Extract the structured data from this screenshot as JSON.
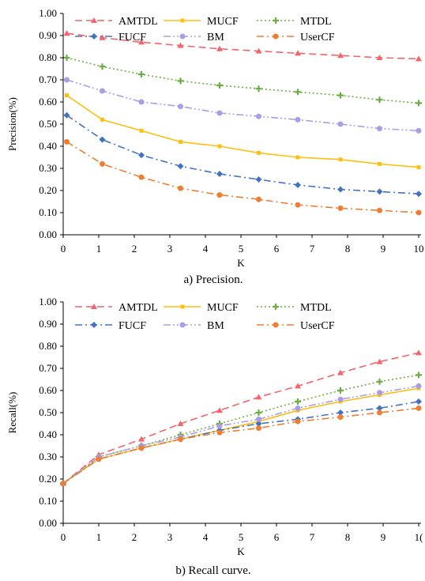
{
  "colors": {
    "AMTDL": "#f4646c",
    "MUCF": "#fdbf14",
    "MTDL": "#6cad45",
    "FUCF": "#4273c0",
    "BM": "#a99ee6",
    "UserCF": "#ee7e33"
  },
  "chart_data": [
    {
      "type": "line",
      "caption": "a) Precision.",
      "xlabel": "K",
      "ylabel": "Precision(%)",
      "xlim": [
        0,
        10
      ],
      "ylim": [
        0,
        1
      ],
      "x_ticks": [
        "0",
        "1",
        "2",
        "3",
        "4",
        "5",
        "6",
        "7",
        "8",
        "9",
        "10"
      ],
      "y_ticks": [
        "0.00",
        "0.10",
        "0.20",
        "0.30",
        "0.40",
        "0.50",
        "0.60",
        "0.70",
        "0.80",
        "0.90",
        "1.00"
      ],
      "grid": false,
      "legend_position": "top",
      "x": [
        0.1,
        1.1,
        2.2,
        3.3,
        4.4,
        5.5,
        6.6,
        7.8,
        8.9,
        10
      ],
      "series": [
        {
          "name": "AMTDL",
          "marker": "triangle",
          "dash": "dash",
          "values": [
            0.91,
            0.89,
            0.87,
            0.855,
            0.84,
            0.83,
            0.82,
            0.81,
            0.8,
            0.795
          ]
        },
        {
          "name": "MUCF",
          "marker": "square",
          "dash": "solid",
          "values": [
            0.63,
            0.52,
            0.47,
            0.42,
            0.4,
            0.37,
            0.35,
            0.34,
            0.32,
            0.305
          ]
        },
        {
          "name": "MTDL",
          "marker": "plus",
          "dash": "dot",
          "values": [
            0.8,
            0.76,
            0.725,
            0.695,
            0.675,
            0.66,
            0.645,
            0.63,
            0.61,
            0.595
          ]
        },
        {
          "name": "FUCF",
          "marker": "diamond",
          "dash": "dashdot",
          "values": [
            0.54,
            0.43,
            0.36,
            0.31,
            0.275,
            0.25,
            0.225,
            0.205,
            0.195,
            0.185
          ]
        },
        {
          "name": "BM",
          "marker": "circle",
          "dash": "dashdotdot",
          "values": [
            0.7,
            0.65,
            0.6,
            0.58,
            0.55,
            0.535,
            0.52,
            0.5,
            0.48,
            0.47
          ]
        },
        {
          "name": "UserCF",
          "marker": "circle",
          "dash": "dashdot",
          "values": [
            0.42,
            0.32,
            0.26,
            0.21,
            0.18,
            0.16,
            0.135,
            0.12,
            0.11,
            0.1
          ]
        }
      ]
    },
    {
      "type": "line",
      "caption": "b) Recall curve.",
      "xlabel": "K",
      "ylabel": "Recall(%)",
      "xlim": [
        0,
        10
      ],
      "ylim": [
        0,
        1
      ],
      "x_ticks": [
        "0",
        "1",
        "2",
        "3",
        "4",
        "5",
        "6",
        "7",
        "8",
        "9",
        "1("
      ],
      "y_ticks": [
        "0.00",
        "0.10",
        "0.20",
        "0.30",
        "0.40",
        "0.50",
        "0.60",
        "0.70",
        "0.80",
        "0.90",
        "1.00"
      ],
      "grid": false,
      "legend_position": "top",
      "x": [
        0,
        1,
        2.2,
        3.3,
        4.4,
        5.5,
        6.6,
        7.8,
        8.9,
        10
      ],
      "series": [
        {
          "name": "AMTDL",
          "marker": "triangle",
          "dash": "dash",
          "values": [
            0.18,
            0.31,
            0.38,
            0.45,
            0.51,
            0.57,
            0.62,
            0.68,
            0.73,
            0.77
          ]
        },
        {
          "name": "MUCF",
          "marker": "square",
          "dash": "solid",
          "values": [
            0.18,
            0.29,
            0.34,
            0.38,
            0.42,
            0.46,
            0.51,
            0.55,
            0.58,
            0.61
          ]
        },
        {
          "name": "MTDL",
          "marker": "plus",
          "dash": "dot",
          "values": [
            0.18,
            0.3,
            0.35,
            0.4,
            0.45,
            0.5,
            0.55,
            0.6,
            0.64,
            0.67
          ]
        },
        {
          "name": "FUCF",
          "marker": "diamond",
          "dash": "dashdot",
          "values": [
            0.18,
            0.29,
            0.34,
            0.38,
            0.42,
            0.45,
            0.47,
            0.5,
            0.52,
            0.55
          ]
        },
        {
          "name": "BM",
          "marker": "circle",
          "dash": "dashdotdot",
          "values": [
            0.18,
            0.3,
            0.35,
            0.39,
            0.44,
            0.47,
            0.52,
            0.56,
            0.59,
            0.62
          ]
        },
        {
          "name": "UserCF",
          "marker": "circle",
          "dash": "dashdot",
          "values": [
            0.18,
            0.29,
            0.34,
            0.38,
            0.41,
            0.43,
            0.46,
            0.48,
            0.5,
            0.52
          ]
        }
      ]
    }
  ]
}
